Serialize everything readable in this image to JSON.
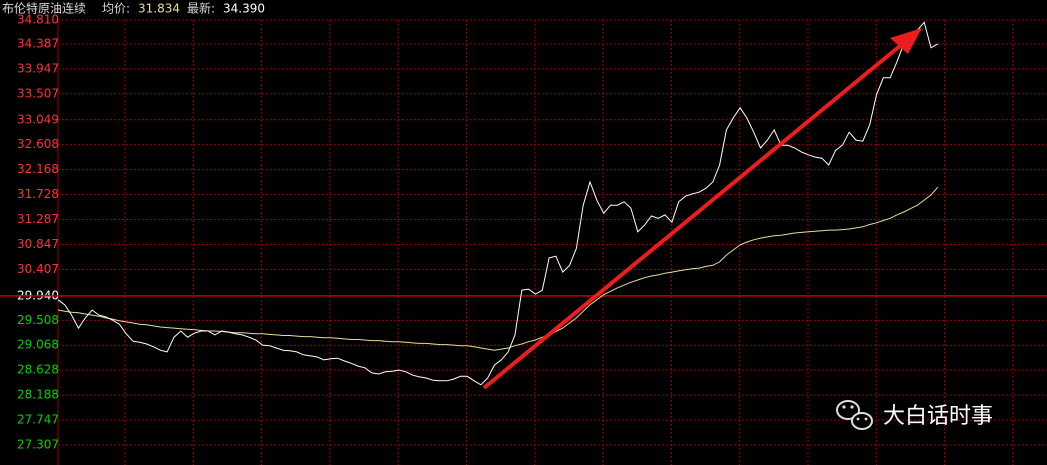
{
  "chart_data": {
    "type": "line",
    "title": "布伦特原油连续",
    "avg_label": "均价:",
    "avg": 31.834,
    "last_label": "最新:",
    "last": {
      "value": 34.39,
      "label": "34.390"
    },
    "xlim": [
      0,
      145
    ],
    "ylim": [
      27.307,
      34.81
    ],
    "yticks": [
      {
        "value": 34.81,
        "label": "34.810"
      },
      34.387,
      33.947,
      33.507,
      33.049,
      32.608,
      32.168,
      31.728,
      31.287,
      30.847,
      30.407,
      {
        "value": 29.94,
        "label": "29.940"
      },
      29.508,
      29.068,
      28.628,
      28.188,
      27.747,
      27.307
    ],
    "grid": true,
    "baseline": 29.94,
    "up_color": "#ff3232",
    "down_color": "#00d200",
    "flat_color": "#ffffff",
    "grid_color": "#a00000",
    "series": [
      {
        "color": "#ffffff",
        "values": [
          29.87,
          29.78,
          29.6,
          29.37,
          29.55,
          29.69,
          29.6,
          29.57,
          29.51,
          29.44,
          29.27,
          29.14,
          29.12,
          29.09,
          29.04,
          28.98,
          28.95,
          29.21,
          29.32,
          29.21,
          29.28,
          29.32,
          29.32,
          29.25,
          29.32,
          29.3,
          29.27,
          29.25,
          29.21,
          29.16,
          29.07,
          29.06,
          29.02,
          28.98,
          28.97,
          28.95,
          28.9,
          28.88,
          28.86,
          28.81,
          28.83,
          28.84,
          28.79,
          28.75,
          28.7,
          28.67,
          28.58,
          28.56,
          28.6,
          28.61,
          28.63,
          28.6,
          28.54,
          28.51,
          28.49,
          28.45,
          28.44,
          28.44,
          28.47,
          28.52,
          28.52,
          28.44,
          28.37,
          28.49,
          28.72,
          28.81,
          28.95,
          29.25,
          30.04,
          30.06,
          29.97,
          30.04,
          30.61,
          30.64,
          30.36,
          30.48,
          30.78,
          31.54,
          31.95,
          31.63,
          31.4,
          31.54,
          31.54,
          31.6,
          31.49,
          31.07,
          31.19,
          31.35,
          31.31,
          31.37,
          31.24,
          31.6,
          31.7,
          31.74,
          31.77,
          31.84,
          31.95,
          32.25,
          32.87,
          33.08,
          33.26,
          33.08,
          32.83,
          32.55,
          32.69,
          32.87,
          32.6,
          32.6,
          32.55,
          32.48,
          32.43,
          32.39,
          32.37,
          32.25,
          32.51,
          32.6,
          32.83,
          32.69,
          32.67,
          32.96,
          33.49,
          33.79,
          33.79,
          34.07,
          34.39,
          34.49,
          34.63,
          34.77,
          34.32,
          34.39
        ]
      },
      {
        "color": "#e6dc9a",
        "values": [
          29.69,
          29.67,
          29.65,
          29.64,
          29.62,
          29.6,
          29.58,
          29.55,
          29.53,
          29.5,
          29.48,
          29.46,
          29.44,
          29.43,
          29.41,
          29.39,
          29.38,
          29.37,
          29.36,
          29.35,
          29.34,
          29.33,
          29.32,
          29.32,
          29.31,
          29.3,
          29.29,
          29.29,
          29.28,
          29.27,
          29.27,
          29.26,
          29.25,
          29.24,
          29.24,
          29.23,
          29.22,
          29.22,
          29.21,
          29.2,
          29.2,
          29.19,
          29.18,
          29.17,
          29.17,
          29.16,
          29.15,
          29.15,
          29.14,
          29.13,
          29.13,
          29.12,
          29.11,
          29.1,
          29.1,
          29.09,
          29.08,
          29.08,
          29.07,
          29.06,
          29.06,
          29.04,
          29.02,
          29.0,
          28.98,
          29.0,
          29.02,
          29.06,
          29.09,
          29.13,
          29.16,
          29.21,
          29.25,
          29.31,
          29.37,
          29.46,
          29.55,
          29.67,
          29.78,
          29.87,
          29.96,
          30.02,
          30.08,
          30.13,
          30.18,
          30.22,
          30.26,
          30.29,
          30.31,
          30.34,
          30.36,
          30.38,
          30.4,
          30.42,
          30.43,
          30.46,
          30.48,
          30.54,
          30.66,
          30.75,
          30.84,
          30.89,
          30.93,
          30.96,
          30.98,
          31.0,
          31.01,
          31.03,
          31.05,
          31.06,
          31.07,
          31.08,
          31.09,
          31.1,
          31.1,
          31.11,
          31.12,
          31.14,
          31.16,
          31.2,
          31.23,
          31.27,
          31.31,
          31.37,
          31.42,
          31.48,
          31.54,
          31.63,
          31.72,
          31.86
        ]
      }
    ]
  },
  "watermark": "大白话时事"
}
